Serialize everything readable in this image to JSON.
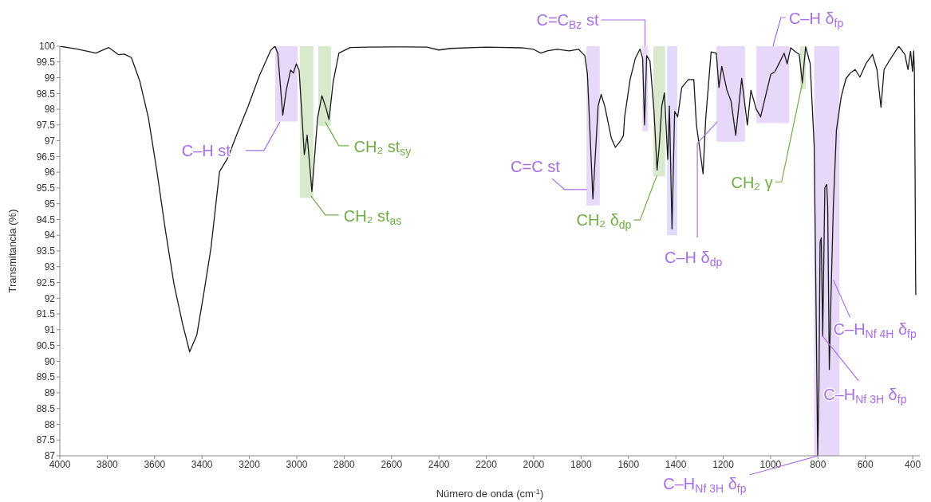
{
  "chart_data": {
    "type": "line",
    "xlabel": "Número de onda (cm$^{-1}$)",
    "ylabel": "Transmitancia (%)",
    "color": "#1a1a1a",
    "x": [
      4000,
      3926,
      3848,
      3794,
      3752,
      3728,
      3698,
      3662,
      3626,
      3590,
      3554,
      3518,
      3482,
      3452,
      3422,
      3392,
      3362,
      3326,
      3290,
      3254,
      3206,
      3158,
      3110,
      3092,
      3080,
      3059,
      3044,
      3026,
      3014,
      3002,
      2990,
      2968,
      2956,
      2936,
      2912,
      2894,
      2876,
      2864,
      2846,
      2822,
      2774,
      2700,
      2600,
      2450,
      2400,
      2350,
      2200,
      2050,
      2000,
      1970,
      1940,
      1900,
      1850,
      1810,
      1784,
      1773,
      1750,
      1728,
      1715,
      1700,
      1672,
      1655,
      1633,
      1621,
      1616,
      1593,
      1571,
      1551,
      1540,
      1532,
      1523,
      1509,
      1492,
      1479,
      1470,
      1459,
      1448,
      1434,
      1427,
      1416,
      1405,
      1392,
      1375,
      1347,
      1324,
      1313,
      1296,
      1285,
      1274,
      1251,
      1229,
      1218,
      1206,
      1184,
      1167,
      1147,
      1122,
      1098,
      1083,
      1061,
      1042,
      1021,
      999,
      982,
      965,
      943,
      930,
      915,
      898,
      879,
      866,
      852,
      833,
      816,
      807,
      801,
      796,
      791,
      786,
      780,
      771,
      763,
      759,
      752,
      745,
      735,
      722,
      702,
      682,
      662,
      643,
      623,
      597,
      570,
      551,
      534,
      521,
      498,
      459,
      433,
      420,
      409,
      401,
      396,
      393,
      390,
      388,
      387
    ],
    "values": [
      100.0,
      99.91,
      99.78,
      99.96,
      99.73,
      99.75,
      99.64,
      98.88,
      97.72,
      96.02,
      94.14,
      92.44,
      91.19,
      90.3,
      90.83,
      92.17,
      93.6,
      96.02,
      96.47,
      97.18,
      98.08,
      99.06,
      99.87,
      100.0,
      99.78,
      97.81,
      98.61,
      99.24,
      99.15,
      99.44,
      99.24,
      96.56,
      97.18,
      95.39,
      97.72,
      98.43,
      98.03,
      97.67,
      98.88,
      99.78,
      99.96,
      99.97,
      99.98,
      99.97,
      99.88,
      99.93,
      99.97,
      99.95,
      99.9,
      99.78,
      99.86,
      99.9,
      99.85,
      99.9,
      99.7,
      99.11,
      95.15,
      98.1,
      98.47,
      98.1,
      97.08,
      96.79,
      97.0,
      97.17,
      97.76,
      98.94,
      99.61,
      99.91,
      99.61,
      97.5,
      99.7,
      99.53,
      97.93,
      96.07,
      96.83,
      98.1,
      98.52,
      96.41,
      98.1,
      94.2,
      97.93,
      97.76,
      98.69,
      98.94,
      98.94,
      97.5,
      96.58,
      95.95,
      97.67,
      99.82,
      99.78,
      98.69,
      99.36,
      98.6,
      98.26,
      97.17,
      98.98,
      97.5,
      98.6,
      98.01,
      97.76,
      98.43,
      99.11,
      99.19,
      99.44,
      99.78,
      99.44,
      99.95,
      99.84,
      99.74,
      98.83,
      99.98,
      99.45,
      96.86,
      91.09,
      87.0,
      89.16,
      93.78,
      93.92,
      90.8,
      95.51,
      95.61,
      94.93,
      89.74,
      92.05,
      94.93,
      97.34,
      98.39,
      98.97,
      99.16,
      99.26,
      99.02,
      99.45,
      99.74,
      99.26,
      98.06,
      99.26,
      99.55,
      100.0,
      99.74,
      99.26,
      99.84,
      99.2,
      99.85,
      99.2,
      96.0,
      92.9,
      92.1
    ],
    "xlim": [
      4000,
      370
    ],
    "xticks": [
      4000,
      3800,
      3600,
      3400,
      3200,
      3000,
      2800,
      2600,
      2400,
      2200,
      2000,
      1800,
      1600,
      1400,
      1200,
      1000,
      800,
      600,
      400
    ],
    "ylim": [
      87,
      100
    ],
    "yticks": [
      100,
      99.5,
      99,
      98.5,
      98,
      97.5,
      97,
      96.5,
      96,
      95.5,
      95,
      94.5,
      94,
      93.5,
      93,
      92.5,
      92,
      91.5,
      91,
      90.5,
      90,
      89.5,
      89,
      88.5,
      88,
      87.5,
      87
    ],
    "bands": [
      {
        "axis": "x",
        "from": 3091,
        "to": 2997,
        "color": "#a86ee8"
      },
      {
        "axis": "x",
        "from": 2987,
        "to": 2930,
        "color": "#70ad47"
      },
      {
        "axis": "x",
        "from": 2909,
        "to": 2856,
        "color": "#70ad47"
      },
      {
        "axis": "x",
        "from": 1777,
        "to": 1721,
        "color": "#a86ee8"
      },
      {
        "axis": "x",
        "from": 1541,
        "to": 1517,
        "color": "#a86ee8"
      },
      {
        "axis": "x",
        "from": 1495,
        "to": 1445,
        "color": "#70ad47"
      },
      {
        "axis": "x",
        "from": 1437,
        "to": 1394,
        "color": "#8f78ee"
      },
      {
        "axis": "x",
        "from": 1228,
        "to": 1108,
        "color": "#a86ee8"
      },
      {
        "axis": "x",
        "from": 1060,
        "to": 922,
        "color": "#a86ee8"
      },
      {
        "axis": "x",
        "from": 875,
        "to": 851,
        "color": "#70ad47"
      },
      {
        "axis": "x",
        "from": 816,
        "to": 709,
        "color": "#a86ee8"
      }
    ],
    "annotations": [
      {
        "text": "C–H st",
        "x": 3071,
        "y": 97.6
      },
      {
        "text": "CH₂ st$_{as}$",
        "x": 2940,
        "y": 95.25
      },
      {
        "text": "CH₂ st$_{sy}$",
        "x": 2880,
        "y": 97.6
      },
      {
        "text": "C=C st",
        "x": 1775,
        "y": 95.45
      },
      {
        "text": "C=C$_{Bz}$ st",
        "x": 1530,
        "y": 100
      },
      {
        "text": "CH₂ δ$_{dp}$",
        "x": 1480,
        "y": 95.9
      },
      {
        "text": "C–H δ$_{dp}$",
        "x": 1225,
        "y": 97.6
      },
      {
        "text": "C–H δ$_{fp}$",
        "x": 990,
        "y": 100
      },
      {
        "text": "CH₂ γ",
        "x": 866,
        "y": 98.83
      },
      {
        "text": "C–H$_{Nf 4H}$ δ$_{fp}$",
        "x": 735,
        "y": 92.58
      },
      {
        "text": "C–H$_{Nf 3H}$ δ$_{fp}$",
        "x": 780,
        "y": 90.8
      },
      {
        "text": "C–H$_{Nf 3H}$ δ$_{fp}$",
        "x": 800,
        "y": 87
      }
    ]
  }
}
